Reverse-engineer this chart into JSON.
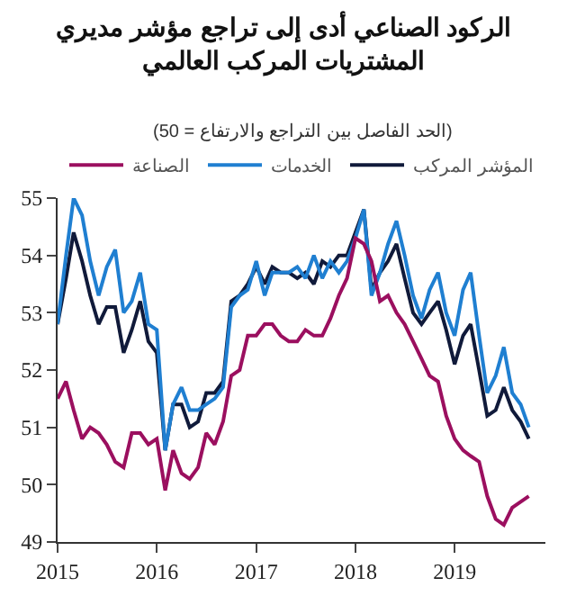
{
  "chart_data": {
    "type": "line",
    "title": "الركود الصناعي أدى إلى تراجع مؤشر مديري\nالمشتريات المركب العالمي",
    "subtitle": "(50 = الحد الفاصل بين التراجع والارتفاع)",
    "x": [
      "2015-01",
      "2015-02",
      "2015-03",
      "2015-04",
      "2015-05",
      "2015-06",
      "2015-07",
      "2015-08",
      "2015-09",
      "2015-10",
      "2015-11",
      "2015-12",
      "2016-01",
      "2016-02",
      "2016-03",
      "2016-04",
      "2016-05",
      "2016-06",
      "2016-07",
      "2016-08",
      "2016-09",
      "2016-10",
      "2016-11",
      "2016-12",
      "2017-01",
      "2017-02",
      "2017-03",
      "2017-04",
      "2017-05",
      "2017-06",
      "2017-07",
      "2017-08",
      "2017-09",
      "2017-10",
      "2017-11",
      "2017-12",
      "2018-01",
      "2018-02",
      "2018-03",
      "2018-04",
      "2018-05",
      "2018-06",
      "2018-07",
      "2018-08",
      "2018-09",
      "2018-10",
      "2018-11",
      "2018-12",
      "2019-01",
      "2019-02",
      "2019-03",
      "2019-04",
      "2019-05",
      "2019-06",
      "2019-07",
      "2019-08",
      "2019-09",
      "2019-10"
    ],
    "series": [
      {
        "name": "المؤشر المركب",
        "color": "#101a3a",
        "values": [
          52.8,
          53.6,
          54.4,
          53.9,
          53.3,
          52.8,
          53.1,
          53.1,
          52.3,
          52.7,
          53.2,
          52.5,
          52.3,
          50.6,
          51.4,
          51.4,
          51.0,
          51.1,
          51.6,
          51.6,
          51.8,
          53.2,
          53.3,
          53.5,
          53.8,
          53.5,
          53.8,
          53.7,
          53.7,
          53.6,
          53.7,
          53.5,
          53.9,
          53.8,
          54.0,
          54.0,
          54.4,
          54.8,
          53.4,
          53.7,
          53.9,
          54.2,
          53.6,
          53.0,
          52.8,
          53.0,
          53.2,
          52.7,
          52.1,
          52.6,
          52.8,
          52.0,
          51.2,
          51.3,
          51.7,
          51.3,
          51.1,
          50.8
        ]
      },
      {
        "name": "الخدمات",
        "color": "#1f7fd1",
        "values": [
          52.8,
          54.0,
          55.0,
          54.7,
          53.9,
          53.3,
          53.8,
          54.1,
          53.0,
          53.2,
          53.7,
          52.8,
          52.7,
          50.6,
          51.4,
          51.7,
          51.3,
          51.3,
          51.4,
          51.5,
          51.7,
          53.1,
          53.3,
          53.4,
          53.9,
          53.3,
          53.7,
          53.7,
          53.7,
          53.8,
          53.6,
          54.0,
          53.6,
          53.9,
          53.7,
          53.9,
          54.3,
          54.8,
          53.3,
          53.7,
          54.2,
          54.6,
          54.0,
          53.3,
          52.9,
          53.4,
          53.7,
          53.0,
          52.6,
          53.4,
          53.7,
          52.6,
          51.6,
          51.9,
          52.4,
          51.6,
          51.4,
          51.0
        ]
      },
      {
        "name": "الصناعة",
        "color": "#9b0f5f",
        "values": [
          51.5,
          51.8,
          51.3,
          50.8,
          51.0,
          50.9,
          50.7,
          50.4,
          50.3,
          50.9,
          50.9,
          50.7,
          50.8,
          49.9,
          50.6,
          50.2,
          50.1,
          50.3,
          50.9,
          50.7,
          51.1,
          51.9,
          52.0,
          52.6,
          52.6,
          52.8,
          52.8,
          52.6,
          52.5,
          52.5,
          52.7,
          52.6,
          52.6,
          52.9,
          53.3,
          53.6,
          54.3,
          54.2,
          53.9,
          53.2,
          53.3,
          53.0,
          52.8,
          52.5,
          52.2,
          51.9,
          51.8,
          51.2,
          50.8,
          50.6,
          50.5,
          50.4,
          49.8,
          49.4,
          49.3,
          49.6,
          49.7,
          49.8
        ]
      }
    ],
    "xlim": [
      "2015-01",
      "2019-12"
    ],
    "xticks": [
      {
        "value": "2015-01",
        "label": "2015"
      },
      {
        "value": "2016-01",
        "label": "2016"
      },
      {
        "value": "2017-01",
        "label": "2017"
      },
      {
        "value": "2018-01",
        "label": "2018"
      },
      {
        "value": "2019-01",
        "label": "2019"
      }
    ],
    "ylim": [
      49,
      55
    ],
    "yticks": [
      49,
      50,
      51,
      52,
      53,
      54,
      55
    ],
    "legend": "top",
    "marker": "none",
    "line_style": "solid"
  }
}
